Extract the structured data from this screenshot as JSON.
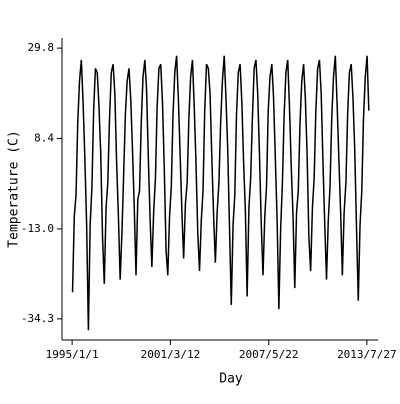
{
  "chart_data": {
    "type": "line",
    "x_label": "Day",
    "y_label": "Temperature (C)",
    "xlim": [
      "1994/5/13",
      "2014/4/9"
    ],
    "xticks": [
      "1995/1/1",
      "2001/3/12",
      "2007/5/22",
      "2013/7/27"
    ],
    "ylim": [
      -39.3,
      32.2
    ],
    "yticks": [
      29.8,
      8.4,
      {
        "value": -13,
        "label": "-13.0"
      },
      -34.3
    ],
    "grid": false,
    "x": [
      "1995/1/10",
      "1995/2/20",
      "1995/4/1",
      "1995/5/10",
      "1995/6/20",
      "1995/8/1",
      "1995/9/10",
      "1995/10/20",
      "1995/12/1",
      "1996/1/10",
      "1996/2/20",
      "1996/4/1",
      "1996/5/10",
      "1996/6/20",
      "1996/8/1",
      "1996/9/10",
      "1996/10/20",
      "1996/12/1",
      "1997/1/10",
      "1997/2/20",
      "1997/4/1",
      "1997/5/10",
      "1997/6/20",
      "1997/8/1",
      "1997/9/10",
      "1997/10/20",
      "1997/12/1",
      "1998/1/10",
      "1998/2/20",
      "1998/4/1",
      "1998/5/10",
      "1998/6/20",
      "1998/8/1",
      "1998/9/10",
      "1998/10/20",
      "1998/12/1",
      "1999/1/10",
      "1999/2/20",
      "1999/4/1",
      "1999/5/10",
      "1999/6/20",
      "1999/8/1",
      "1999/9/10",
      "1999/10/20",
      "1999/12/1",
      "2000/1/10",
      "2000/2/20",
      "2000/4/1",
      "2000/5/10",
      "2000/6/20",
      "2000/8/1",
      "2000/9/10",
      "2000/10/20",
      "2000/12/1",
      "2001/1/10",
      "2001/2/20",
      "2001/4/1",
      "2001/5/10",
      "2001/6/20",
      "2001/8/1",
      "2001/9/10",
      "2001/10/20",
      "2001/12/1",
      "2002/1/10",
      "2002/2/20",
      "2002/4/1",
      "2002/5/10",
      "2002/6/20",
      "2002/8/1",
      "2002/9/10",
      "2002/10/20",
      "2002/12/1",
      "2003/1/10",
      "2003/2/20",
      "2003/4/1",
      "2003/5/10",
      "2003/6/20",
      "2003/8/1",
      "2003/9/10",
      "2003/10/20",
      "2003/12/1",
      "2004/1/10",
      "2004/2/20",
      "2004/4/1",
      "2004/5/10",
      "2004/6/20",
      "2004/8/1",
      "2004/9/10",
      "2004/10/20",
      "2004/12/1",
      "2005/1/10",
      "2005/2/20",
      "2005/4/1",
      "2005/5/10",
      "2005/6/20",
      "2005/8/1",
      "2005/9/10",
      "2005/10/20",
      "2005/12/1",
      "2006/1/10",
      "2006/2/20",
      "2006/4/1",
      "2006/5/10",
      "2006/6/20",
      "2006/8/1",
      "2006/9/10",
      "2006/10/20",
      "2006/12/1",
      "2007/1/10",
      "2007/2/20",
      "2007/4/1",
      "2007/5/10",
      "2007/6/20",
      "2007/8/1",
      "2007/9/10",
      "2007/10/20",
      "2007/12/1",
      "2008/1/10",
      "2008/2/20",
      "2008/4/1",
      "2008/5/10",
      "2008/6/20",
      "2008/8/1",
      "2008/9/10",
      "2008/10/20",
      "2008/12/1",
      "2009/1/10",
      "2009/2/20",
      "2009/4/1",
      "2009/5/10",
      "2009/6/20",
      "2009/8/1",
      "2009/9/10",
      "2009/10/20",
      "2009/12/1",
      "2010/1/10",
      "2010/2/20",
      "2010/4/1",
      "2010/5/10",
      "2010/6/20",
      "2010/8/1",
      "2010/9/10",
      "2010/10/20",
      "2010/12/1",
      "2011/1/10",
      "2011/2/20",
      "2011/4/1",
      "2011/5/10",
      "2011/6/20",
      "2011/8/1",
      "2011/9/10",
      "2011/10/20",
      "2011/12/1",
      "2012/1/10",
      "2012/2/20",
      "2012/4/1",
      "2012/5/10",
      "2012/6/20",
      "2012/8/1",
      "2012/9/10",
      "2012/10/20",
      "2012/12/1",
      "2013/1/10",
      "2013/2/20",
      "2013/4/1",
      "2013/5/10",
      "2013/6/20",
      "2013/8/1",
      "2013/9/10"
    ],
    "series": [
      {
        "color": "#000000",
        "values": [
          -28,
          -10,
          -5,
          12,
          22,
          27,
          17,
          4,
          -12,
          -37,
          -12,
          -3,
          15,
          25,
          24,
          16,
          5,
          -15,
          -26,
          -8,
          -2,
          13,
          24,
          26,
          19,
          3,
          -10,
          -25,
          -14,
          0,
          14,
          22,
          25,
          18,
          6,
          -8,
          -24,
          -6,
          -4,
          12,
          23,
          27,
          20,
          4,
          -11,
          -22,
          -9,
          -1,
          16,
          25,
          26,
          17,
          2,
          -18,
          -24,
          -10,
          -3,
          14,
          24,
          28,
          18,
          5,
          -9,
          -20,
          -7,
          -2,
          13,
          23,
          27,
          16,
          3,
          -14,
          -23,
          -11,
          -4,
          15,
          26,
          25,
          19,
          4,
          -10,
          -21,
          -9,
          -2,
          12,
          22,
          28,
          18,
          6,
          -13,
          -31,
          -12,
          -5,
          14,
          24,
          26,
          17,
          3,
          -9,
          -29,
          -8,
          -1,
          13,
          25,
          27,
          19,
          5,
          -12,
          -24,
          -10,
          -3,
          15,
          23,
          26,
          18,
          4,
          -11,
          -32,
          -13,
          -2,
          14,
          24,
          27,
          16,
          2,
          -10,
          -27,
          -9,
          -4,
          12,
          22,
          26,
          18,
          5,
          -15,
          -23,
          -8,
          -1,
          15,
          25,
          27,
          19,
          3,
          -12,
          -25,
          -11,
          -3,
          13,
          23,
          28,
          17,
          4,
          -9,
          -24,
          -9,
          -2,
          14,
          24,
          26,
          18,
          6,
          -13,
          -30,
          -12,
          -4,
          13,
          23,
          28,
          15
        ]
      }
    ]
  }
}
